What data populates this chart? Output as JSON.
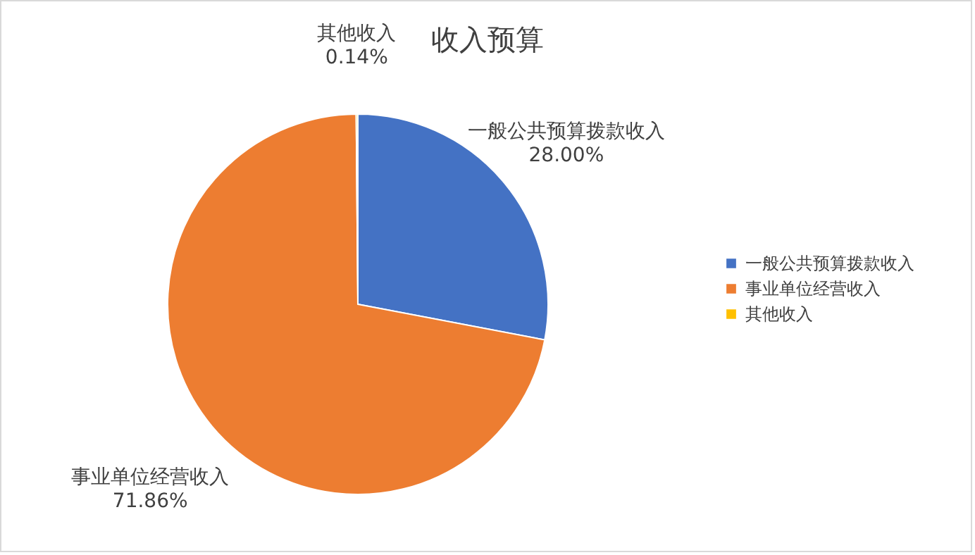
{
  "chart_data": {
    "type": "pie",
    "title": "收入预算",
    "categories": [
      "一般公共预算拨款收入",
      "事业单位经营收入",
      "其他收入"
    ],
    "values": [
      28.0,
      71.86,
      0.14
    ],
    "value_labels": [
      "28.00%",
      "71.86%",
      "0.14%"
    ],
    "colors": [
      "#4472c4",
      "#ed7d31",
      "#ffc000"
    ],
    "legend": "right"
  }
}
